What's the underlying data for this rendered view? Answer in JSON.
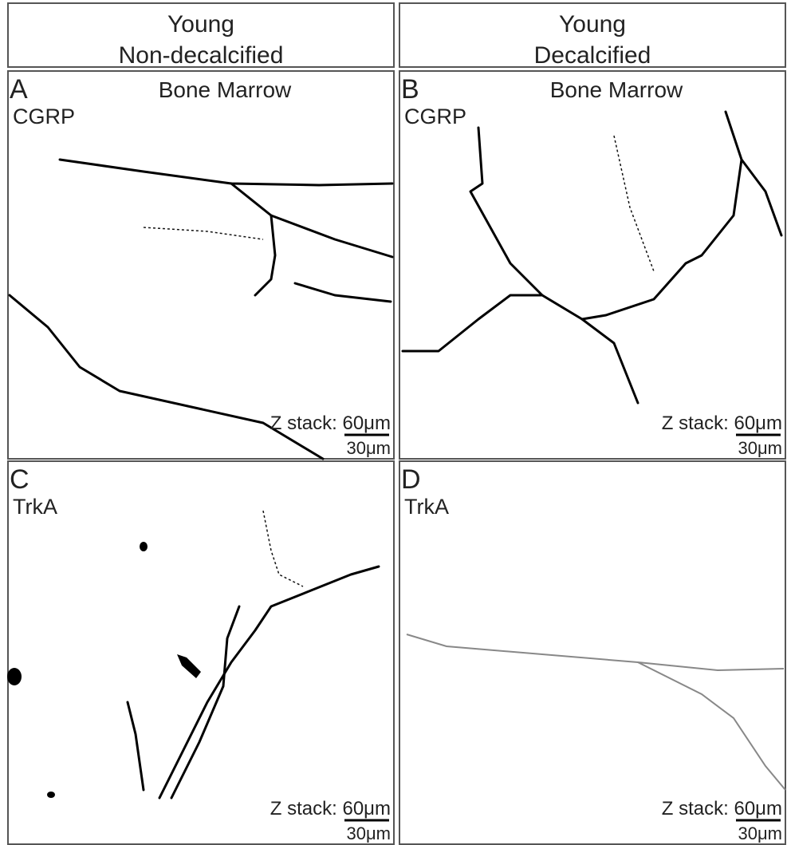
{
  "columns": [
    {
      "line1": "Young",
      "line2": "Non-decalcified"
    },
    {
      "line1": "Young",
      "line2": "Decalcified"
    }
  ],
  "panels": [
    {
      "letter": "A",
      "region": "Bone Marrow",
      "stain": "CGRP",
      "z_stack": "Z stack: 60μm",
      "scale_bar": "30μm"
    },
    {
      "letter": "B",
      "region": "Bone Marrow",
      "stain": "CGRP",
      "z_stack": "Z stack: 60μm",
      "scale_bar": "30μm"
    },
    {
      "letter": "C",
      "stain": "TrkA",
      "z_stack": "Z stack: 60μm",
      "scale_bar": "30μm"
    },
    {
      "letter": "D",
      "stain": "TrkA",
      "z_stack": "Z stack: 60μm",
      "scale_bar": "30μm"
    }
  ]
}
